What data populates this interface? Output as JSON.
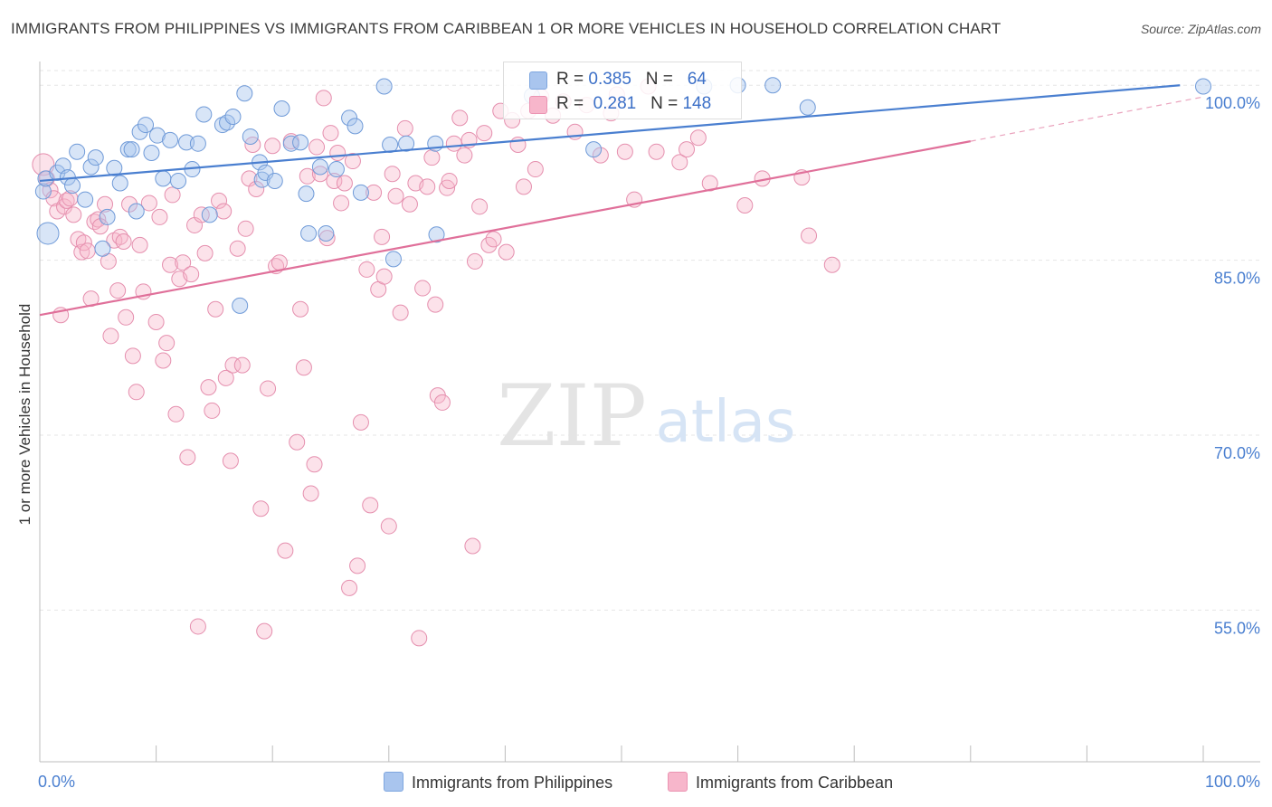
{
  "title": "IMMIGRANTS FROM PHILIPPINES VS IMMIGRANTS FROM CARIBBEAN 1 OR MORE VEHICLES IN HOUSEHOLD CORRELATION CHART",
  "source": "Source: ZipAtlas.com",
  "watermark": {
    "zip": "ZIP",
    "atlas": "atlas"
  },
  "legend": {
    "r_label": "R =",
    "n_label": "N =",
    "rows": [
      {
        "r": "0.385",
        "n": "64",
        "color": "#a9c5ee"
      },
      {
        "r": "0.281",
        "n": "148",
        "color": "#f7b6cb"
      }
    ]
  },
  "bottom_legend": [
    {
      "label": "Immigrants from Philippines",
      "color": "#a9c5ee"
    },
    {
      "label": "Immigrants from Caribbean",
      "color": "#f7b6cb"
    }
  ],
  "chart_data": {
    "type": "scatter",
    "xlabel": "",
    "ylabel": "1 or more Vehicles in Household",
    "xlim": [
      0,
      100
    ],
    "ylim": [
      42,
      102.5
    ],
    "x_tick_labels": [
      "0.0%",
      "100.0%"
    ],
    "y_ticks": [
      55,
      70,
      85,
      100
    ],
    "y_tick_labels": [
      "55.0%",
      "70.0%",
      "85.0%",
      "100.0%"
    ],
    "grid": true,
    "colors": {
      "philippines": "#4a7fd0",
      "caribbean": "#e0709a",
      "philippines_fill": "#a9c5ee",
      "caribbean_fill": "#f7b6cb"
    },
    "series": [
      {
        "name": "Immigrants from Philippines",
        "trend": {
          "x": [
            0,
            98
          ],
          "y": [
            91.8,
            100.0
          ],
          "dashed_to": null
        },
        "points": [
          [
            0.3,
            90.9
          ],
          [
            0.5,
            92.0
          ],
          [
            0.7,
            87.3
          ],
          [
            1.5,
            92.5
          ],
          [
            2.0,
            93.1
          ],
          [
            2.4,
            92.1
          ],
          [
            2.8,
            91.4
          ],
          [
            3.2,
            94.3
          ],
          [
            3.9,
            90.2
          ],
          [
            4.4,
            93.0
          ],
          [
            4.8,
            93.8
          ],
          [
            5.4,
            86.0
          ],
          [
            5.8,
            88.7
          ],
          [
            6.4,
            92.9
          ],
          [
            6.9,
            91.6
          ],
          [
            7.6,
            94.5
          ],
          [
            7.9,
            94.5
          ],
          [
            8.3,
            89.2
          ],
          [
            8.6,
            96.0
          ],
          [
            9.1,
            96.6
          ],
          [
            9.6,
            94.2
          ],
          [
            10.1,
            95.7
          ],
          [
            10.6,
            92.0
          ],
          [
            11.2,
            95.3
          ],
          [
            11.9,
            91.8
          ],
          [
            12.6,
            95.1
          ],
          [
            13.1,
            92.8
          ],
          [
            13.6,
            95.0
          ],
          [
            14.1,
            97.5
          ],
          [
            14.6,
            88.9
          ],
          [
            15.7,
            96.6
          ],
          [
            16.1,
            96.8
          ],
          [
            16.6,
            97.3
          ],
          [
            17.2,
            81.1
          ],
          [
            17.6,
            99.3
          ],
          [
            18.1,
            95.6
          ],
          [
            18.9,
            93.4
          ],
          [
            19.1,
            91.9
          ],
          [
            19.4,
            92.5
          ],
          [
            20.2,
            91.8
          ],
          [
            20.8,
            98.0
          ],
          [
            21.6,
            95.0
          ],
          [
            22.4,
            95.1
          ],
          [
            22.9,
            90.7
          ],
          [
            23.1,
            87.3
          ],
          [
            24.1,
            93.0
          ],
          [
            24.6,
            87.3
          ],
          [
            25.5,
            92.8
          ],
          [
            26.6,
            97.2
          ],
          [
            27.1,
            96.5
          ],
          [
            27.6,
            90.8
          ],
          [
            29.6,
            99.9
          ],
          [
            30.1,
            94.9
          ],
          [
            30.4,
            85.1
          ],
          [
            31.5,
            95.0
          ],
          [
            34.0,
            95.0
          ],
          [
            34.1,
            87.2
          ],
          [
            42.3,
            99.1
          ],
          [
            47.6,
            94.5
          ],
          [
            57.1,
            99.9
          ],
          [
            60.0,
            100.0
          ],
          [
            63.0,
            100.0
          ],
          [
            66.0,
            98.1
          ],
          [
            100.0,
            99.9
          ]
        ]
      },
      {
        "name": "Immigrants from Caribbean",
        "trend": {
          "x": [
            0,
            80
          ],
          "y": [
            80.3,
            95.2
          ],
          "dashed_to": {
            "x": 100,
            "y": 99.0
          }
        },
        "points": [
          [
            0.3,
            93.2
          ],
          [
            0.6,
            92.0
          ],
          [
            0.9,
            91.0
          ],
          [
            1.2,
            90.3
          ],
          [
            1.5,
            89.2
          ],
          [
            1.8,
            80.3
          ],
          [
            2.1,
            89.6
          ],
          [
            2.3,
            90.1
          ],
          [
            2.6,
            90.3
          ],
          [
            2.9,
            88.9
          ],
          [
            3.3,
            86.8
          ],
          [
            3.6,
            85.7
          ],
          [
            3.8,
            86.5
          ],
          [
            4.1,
            85.8
          ],
          [
            4.4,
            81.7
          ],
          [
            4.7,
            88.3
          ],
          [
            5.0,
            88.5
          ],
          [
            5.2,
            87.9
          ],
          [
            5.6,
            89.8
          ],
          [
            5.9,
            84.9
          ],
          [
            6.1,
            78.5
          ],
          [
            6.4,
            86.7
          ],
          [
            6.7,
            82.4
          ],
          [
            6.9,
            87.0
          ],
          [
            7.2,
            86.6
          ],
          [
            7.4,
            80.1
          ],
          [
            7.7,
            89.8
          ],
          [
            8.0,
            76.8
          ],
          [
            8.3,
            73.7
          ],
          [
            8.6,
            86.3
          ],
          [
            8.9,
            82.3
          ],
          [
            9.4,
            89.9
          ],
          [
            10.0,
            79.7
          ],
          [
            10.3,
            88.7
          ],
          [
            10.6,
            76.4
          ],
          [
            10.9,
            77.9
          ],
          [
            11.2,
            84.6
          ],
          [
            11.4,
            90.6
          ],
          [
            11.7,
            71.8
          ],
          [
            12.0,
            83.4
          ],
          [
            12.3,
            84.8
          ],
          [
            12.7,
            68.1
          ],
          [
            13.0,
            83.8
          ],
          [
            13.3,
            88.0
          ],
          [
            13.6,
            53.6
          ],
          [
            13.9,
            88.9
          ],
          [
            14.2,
            85.6
          ],
          [
            14.5,
            74.1
          ],
          [
            14.8,
            72.1
          ],
          [
            15.1,
            80.8
          ],
          [
            15.4,
            90.1
          ],
          [
            15.8,
            89.2
          ],
          [
            16.0,
            74.9
          ],
          [
            16.4,
            67.8
          ],
          [
            16.6,
            76.0
          ],
          [
            17.0,
            86.0
          ],
          [
            17.4,
            76.0
          ],
          [
            17.7,
            87.7
          ],
          [
            18.0,
            92.0
          ],
          [
            18.3,
            94.9
          ],
          [
            18.6,
            91.1
          ],
          [
            19.0,
            63.7
          ],
          [
            19.3,
            53.2
          ],
          [
            19.6,
            74.0
          ],
          [
            20.0,
            94.8
          ],
          [
            20.3,
            84.5
          ],
          [
            20.6,
            84.8
          ],
          [
            21.1,
            60.1
          ],
          [
            21.6,
            95.2
          ],
          [
            22.1,
            69.4
          ],
          [
            22.4,
            80.8
          ],
          [
            22.7,
            75.8
          ],
          [
            23.0,
            92.2
          ],
          [
            23.3,
            65.0
          ],
          [
            23.6,
            67.5
          ],
          [
            23.8,
            94.7
          ],
          [
            24.1,
            92.4
          ],
          [
            24.4,
            98.9
          ],
          [
            24.7,
            86.9
          ],
          [
            25.0,
            95.9
          ],
          [
            25.3,
            91.8
          ],
          [
            25.6,
            94.2
          ],
          [
            25.9,
            89.9
          ],
          [
            26.2,
            91.6
          ],
          [
            26.6,
            56.9
          ],
          [
            26.9,
            93.5
          ],
          [
            27.3,
            58.8
          ],
          [
            27.6,
            71.1
          ],
          [
            28.1,
            84.2
          ],
          [
            28.4,
            64.0
          ],
          [
            28.7,
            90.8
          ],
          [
            29.1,
            82.5
          ],
          [
            29.4,
            87.0
          ],
          [
            29.6,
            83.6
          ],
          [
            30.0,
            62.2
          ],
          [
            30.3,
            92.4
          ],
          [
            30.6,
            90.5
          ],
          [
            31.0,
            80.5
          ],
          [
            31.4,
            96.3
          ],
          [
            31.8,
            89.8
          ],
          [
            32.3,
            91.6
          ],
          [
            32.6,
            52.6
          ],
          [
            32.9,
            82.6
          ],
          [
            33.3,
            91.3
          ],
          [
            33.7,
            93.8
          ],
          [
            34.0,
            81.2
          ],
          [
            34.2,
            73.4
          ],
          [
            34.6,
            72.8
          ],
          [
            35.0,
            91.2
          ],
          [
            35.2,
            91.8
          ],
          [
            35.6,
            95.0
          ],
          [
            36.1,
            97.2
          ],
          [
            36.5,
            94.0
          ],
          [
            36.9,
            95.3
          ],
          [
            37.2,
            60.5
          ],
          [
            37.4,
            84.9
          ],
          [
            37.8,
            89.6
          ],
          [
            38.2,
            95.9
          ],
          [
            38.6,
            86.3
          ],
          [
            39.0,
            86.8
          ],
          [
            39.6,
            97.8
          ],
          [
            40.1,
            85.7
          ],
          [
            40.6,
            97.0
          ],
          [
            41.1,
            94.9
          ],
          [
            41.6,
            91.3
          ],
          [
            42.0,
            97.8
          ],
          [
            42.6,
            92.8
          ],
          [
            43.1,
            99.0
          ],
          [
            44.1,
            97.4
          ],
          [
            45.0,
            98.6
          ],
          [
            46.0,
            96.0
          ],
          [
            47.0,
            98.3
          ],
          [
            48.2,
            94.0
          ],
          [
            49.1,
            97.6
          ],
          [
            49.6,
            99.2
          ],
          [
            50.3,
            94.3
          ],
          [
            51.1,
            90.2
          ],
          [
            52.3,
            99.9
          ],
          [
            53.0,
            94.3
          ],
          [
            55.0,
            93.4
          ],
          [
            55.6,
            94.5
          ],
          [
            56.6,
            95.5
          ],
          [
            57.6,
            91.6
          ],
          [
            60.6,
            89.7
          ],
          [
            62.1,
            92.0
          ],
          [
            65.5,
            92.1
          ],
          [
            66.1,
            87.1
          ],
          [
            68.1,
            84.6
          ]
        ]
      }
    ]
  }
}
